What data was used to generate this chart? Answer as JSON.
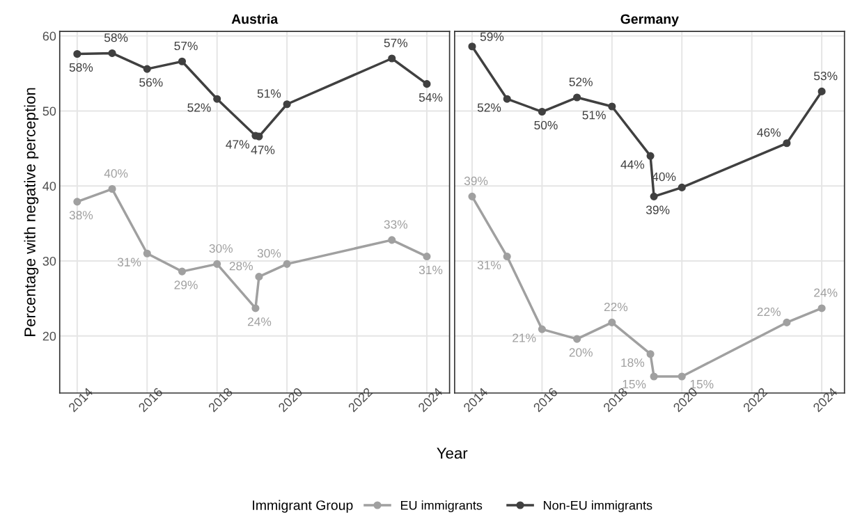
{
  "chart_data": [
    {
      "type": "line",
      "title": "Austria",
      "xlabel": "Year",
      "ylabel": "Percentage with negative perception",
      "legend_title": "Immigrant Group",
      "legend": "bottom",
      "grid": true,
      "marker": "circle",
      "line_style": "solid",
      "xlim": [
        2013.5,
        2024.65
      ],
      "xticks": [
        2014,
        2016,
        2018,
        2020,
        2022,
        2024
      ],
      "ylim": [
        12.4,
        60.6
      ],
      "yticks": [
        20,
        30,
        40,
        50,
        60
      ],
      "x": [
        2014,
        2015,
        2016,
        2017,
        2018,
        2019.1,
        2019.2,
        2020,
        2023,
        2024
      ],
      "series": [
        {
          "name": "EU immigrants",
          "color": "#a0a0a0",
          "values": [
            37.9,
            39.6,
            31.0,
            28.6,
            29.6,
            23.7,
            27.9,
            29.6,
            32.8,
            30.6
          ],
          "value_labels": [
            "38%",
            "40%",
            "31%",
            "29%",
            "30%",
            "24%",
            "28%",
            "30%",
            "33%",
            "31%"
          ]
        },
        {
          "name": "Non-EU immigrants",
          "color": "#404040",
          "values": [
            57.6,
            57.7,
            55.6,
            56.6,
            51.6,
            46.7,
            46.6,
            50.9,
            57.0,
            53.6
          ],
          "value_labels": [
            "58%",
            "58%",
            "56%",
            "57%",
            "52%",
            "47%",
            "47%",
            "51%",
            "57%",
            "54%"
          ]
        }
      ]
    },
    {
      "type": "line",
      "title": "Germany",
      "grid": true,
      "marker": "circle",
      "line_style": "solid",
      "tick_labels": "x",
      "xlim": [
        2013.5,
        2024.65
      ],
      "xticks": [
        2014,
        2016,
        2018,
        2020,
        2022,
        2024
      ],
      "ylim": [
        12.4,
        60.6
      ],
      "yticks": [
        20,
        30,
        40,
        50,
        60
      ],
      "x": [
        2014,
        2015,
        2016,
        2017,
        2018,
        2019.1,
        2019.2,
        2020,
        2023,
        2024
      ],
      "series": [
        {
          "name": "EU immigrants",
          "color": "#a0a0a0",
          "values": [
            38.6,
            30.6,
            20.9,
            19.6,
            21.8,
            17.6,
            14.6,
            14.6,
            21.8,
            23.7
          ],
          "value_labels": [
            "39%",
            "31%",
            "21%",
            "20%",
            "22%",
            "18%",
            "15%",
            "15%",
            "22%",
            "24%"
          ]
        },
        {
          "name": "Non-EU immigrants",
          "color": "#404040",
          "values": [
            58.6,
            51.6,
            49.9,
            51.8,
            50.6,
            44.0,
            38.6,
            39.8,
            45.7,
            52.6
          ],
          "value_labels": [
            "59%",
            "52%",
            "50%",
            "52%",
            "51%",
            "44%",
            "39%",
            "40%",
            "46%",
            "53%"
          ]
        }
      ]
    }
  ]
}
